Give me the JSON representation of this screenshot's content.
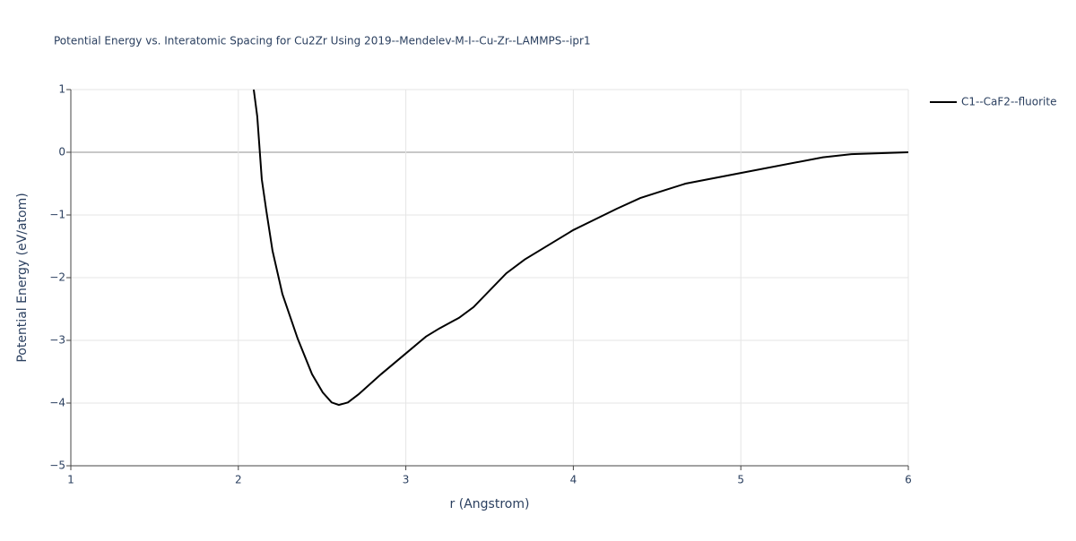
{
  "chart_data": {
    "type": "line",
    "title": "Potential Energy vs. Interatomic Spacing for Cu2Zr Using 2019--Mendelev-M-I--Cu-Zr--LAMMPS--ipr1",
    "x_label": "r (Angstrom)",
    "y_label": "Potential Energy (eV/atom)",
    "x": [
      2.092,
      2.113,
      2.14,
      2.167,
      2.204,
      2.263,
      2.354,
      2.44,
      2.504,
      2.557,
      2.6,
      2.654,
      2.718,
      2.852,
      2.986,
      3.12,
      3.2,
      3.318,
      3.404,
      3.6,
      3.71,
      4.0,
      4.26,
      4.4,
      4.54,
      4.67,
      5.0,
      5.49,
      5.66,
      5.88,
      6.0
    ],
    "series": [
      {
        "name": "C1--CaF2--fluorite",
        "color": "#000000",
        "values": [
          1.0,
          0.57,
          -0.43,
          -0.93,
          -1.57,
          -2.26,
          -2.97,
          -3.54,
          -3.83,
          -3.99,
          -4.03,
          -3.99,
          -3.86,
          -3.54,
          -3.24,
          -2.94,
          -2.81,
          -2.64,
          -2.47,
          -1.93,
          -1.71,
          -1.24,
          -0.9,
          -0.73,
          -0.61,
          -0.5,
          -0.33,
          -0.08,
          -0.03,
          -0.01,
          0.0
        ]
      }
    ],
    "xlim": [
      1,
      6
    ],
    "xticks": [
      1,
      2,
      3,
      4,
      5,
      6
    ],
    "ylim": [
      -5,
      1
    ],
    "yticks": [
      {
        "value": -5,
        "label": "−5"
      },
      {
        "value": -4,
        "label": "−4"
      },
      {
        "value": -3,
        "label": "−3"
      },
      {
        "value": -2,
        "label": "−2"
      },
      {
        "value": -1,
        "label": "−1"
      },
      0,
      1
    ],
    "grid": true,
    "legend": "right"
  }
}
